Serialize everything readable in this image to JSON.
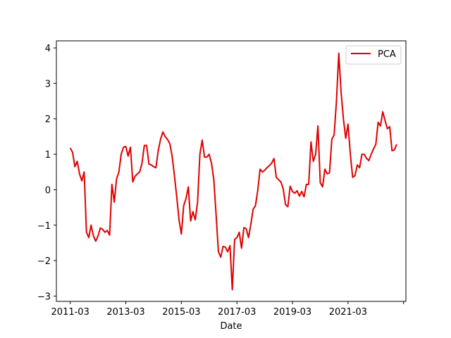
{
  "chart_data": {
    "type": "line",
    "title": "",
    "xlabel": "Date",
    "ylabel": "",
    "ylim": [
      -3.15,
      4.2
    ],
    "xlim": [
      "2010-09",
      "2023-04"
    ],
    "yticks": [
      "−3",
      "−2",
      "−1",
      "0",
      "1",
      "2",
      "3",
      "4"
    ],
    "ytick_values": [
      -3,
      -2,
      -1,
      0,
      1,
      2,
      3,
      4
    ],
    "xticks": [
      {
        "date": "2011-03",
        "label": "2011-03"
      },
      {
        "date": "2013-03",
        "label": "2013-03"
      },
      {
        "date": "2015-03",
        "label": "2015-03"
      },
      {
        "date": "2017-03",
        "label": "2017-03"
      },
      {
        "date": "2019-03",
        "label": "2019-03"
      },
      {
        "date": "2021-03",
        "label": "2021-03"
      },
      {
        "date": "2023-03",
        "label": ""
      }
    ],
    "grid": false,
    "legend_position": "top-right",
    "series": [
      {
        "name": "PCA",
        "color": "#e00000",
        "points": [
          [
            "2011-03",
            1.18
          ],
          [
            "2011-04",
            1.05
          ],
          [
            "2011-05",
            0.65
          ],
          [
            "2011-06",
            0.8
          ],
          [
            "2011-07",
            0.45
          ],
          [
            "2011-08",
            0.25
          ],
          [
            "2011-09",
            0.5
          ],
          [
            "2011-10",
            -1.2
          ],
          [
            "2011-11",
            -1.35
          ],
          [
            "2011-12",
            -1.0
          ],
          [
            "2012-01",
            -1.3
          ],
          [
            "2012-02",
            -1.45
          ],
          [
            "2012-03",
            -1.3
          ],
          [
            "2012-04",
            -1.08
          ],
          [
            "2012-05",
            -1.12
          ],
          [
            "2012-06",
            -1.2
          ],
          [
            "2012-07",
            -1.15
          ],
          [
            "2012-08",
            -1.28
          ],
          [
            "2012-09",
            0.15
          ],
          [
            "2012-10",
            -0.35
          ],
          [
            "2012-11",
            0.3
          ],
          [
            "2012-12",
            0.5
          ],
          [
            "2013-01",
            1.0
          ],
          [
            "2013-02",
            1.2
          ],
          [
            "2013-03",
            1.22
          ],
          [
            "2013-04",
            0.95
          ],
          [
            "2013-05",
            1.2
          ],
          [
            "2013-06",
            0.22
          ],
          [
            "2013-07",
            0.38
          ],
          [
            "2013-08",
            0.45
          ],
          [
            "2013-09",
            0.5
          ],
          [
            "2013-10",
            0.75
          ],
          [
            "2013-11",
            1.25
          ],
          [
            "2013-12",
            1.25
          ],
          [
            "2014-01",
            0.72
          ],
          [
            "2014-02",
            0.7
          ],
          [
            "2014-03",
            0.65
          ],
          [
            "2014-04",
            0.62
          ],
          [
            "2014-05",
            1.1
          ],
          [
            "2014-06",
            1.42
          ],
          [
            "2014-07",
            1.63
          ],
          [
            "2014-08",
            1.5
          ],
          [
            "2014-09",
            1.42
          ],
          [
            "2014-10",
            1.3
          ],
          [
            "2014-11",
            0.95
          ],
          [
            "2014-12",
            0.4
          ],
          [
            "2015-01",
            -0.2
          ],
          [
            "2015-02",
            -0.85
          ],
          [
            "2015-03",
            -1.25
          ],
          [
            "2015-04",
            -0.45
          ],
          [
            "2015-05",
            -0.25
          ],
          [
            "2015-06",
            0.08
          ],
          [
            "2015-07",
            -0.88
          ],
          [
            "2015-08",
            -0.62
          ],
          [
            "2015-09",
            -0.85
          ],
          [
            "2015-10",
            -0.35
          ],
          [
            "2015-11",
            1.0
          ],
          [
            "2015-12",
            1.4
          ],
          [
            "2016-01",
            0.92
          ],
          [
            "2016-02",
            0.92
          ],
          [
            "2016-03",
            1.0
          ],
          [
            "2016-04",
            0.75
          ],
          [
            "2016-05",
            0.3
          ],
          [
            "2016-06",
            -0.7
          ],
          [
            "2016-07",
            -1.75
          ],
          [
            "2016-08",
            -1.9
          ],
          [
            "2016-09",
            -1.6
          ],
          [
            "2016-10",
            -1.62
          ],
          [
            "2016-11",
            -1.75
          ],
          [
            "2016-12",
            -1.58
          ],
          [
            "2017-01",
            -2.82
          ],
          [
            "2017-02",
            -1.4
          ],
          [
            "2017-03",
            -1.35
          ],
          [
            "2017-04",
            -1.2
          ],
          [
            "2017-05",
            -1.65
          ],
          [
            "2017-06",
            -1.07
          ],
          [
            "2017-07",
            -1.1
          ],
          [
            "2017-08",
            -1.35
          ],
          [
            "2017-09",
            -0.98
          ],
          [
            "2017-10",
            -0.55
          ],
          [
            "2017-11",
            -0.45
          ],
          [
            "2017-12",
            -0.02
          ],
          [
            "2018-01",
            0.58
          ],
          [
            "2018-02",
            0.5
          ],
          [
            "2018-03",
            0.55
          ],
          [
            "2018-04",
            0.62
          ],
          [
            "2018-05",
            0.68
          ],
          [
            "2018-06",
            0.75
          ],
          [
            "2018-07",
            0.88
          ],
          [
            "2018-08",
            0.35
          ],
          [
            "2018-09",
            0.28
          ],
          [
            "2018-10",
            0.22
          ],
          [
            "2018-11",
            0.02
          ],
          [
            "2018-12",
            -0.42
          ],
          [
            "2019-01",
            -0.48
          ],
          [
            "2019-02",
            0.1
          ],
          [
            "2019-03",
            -0.05
          ],
          [
            "2019-04",
            -0.1
          ],
          [
            "2019-05",
            -0.03
          ],
          [
            "2019-06",
            -0.18
          ],
          [
            "2019-07",
            -0.05
          ],
          [
            "2019-08",
            -0.2
          ],
          [
            "2019-09",
            0.15
          ],
          [
            "2019-10",
            0.15
          ],
          [
            "2019-11",
            1.35
          ],
          [
            "2019-12",
            0.8
          ],
          [
            "2020-01",
            1.0
          ],
          [
            "2020-02",
            1.8
          ],
          [
            "2020-03",
            0.2
          ],
          [
            "2020-04",
            0.08
          ],
          [
            "2020-05",
            0.58
          ],
          [
            "2020-06",
            0.45
          ],
          [
            "2020-07",
            0.48
          ],
          [
            "2020-08",
            1.42
          ],
          [
            "2020-09",
            1.55
          ],
          [
            "2020-10",
            2.5
          ],
          [
            "2020-11",
            3.85
          ],
          [
            "2020-12",
            2.75
          ],
          [
            "2021-01",
            2.0
          ],
          [
            "2021-02",
            1.45
          ],
          [
            "2021-03",
            1.85
          ],
          [
            "2021-04",
            1.0
          ],
          [
            "2021-05",
            0.35
          ],
          [
            "2021-06",
            0.4
          ],
          [
            "2021-07",
            0.7
          ],
          [
            "2021-08",
            0.62
          ],
          [
            "2021-09",
            1.0
          ],
          [
            "2021-10",
            1.0
          ],
          [
            "2021-11",
            0.88
          ],
          [
            "2021-12",
            0.82
          ],
          [
            "2022-01",
            1.0
          ],
          [
            "2022-02",
            1.15
          ],
          [
            "2022-03",
            1.28
          ],
          [
            "2022-04",
            1.9
          ],
          [
            "2022-05",
            1.8
          ],
          [
            "2022-06",
            2.2
          ],
          [
            "2022-07",
            1.95
          ],
          [
            "2022-08",
            1.72
          ],
          [
            "2022-09",
            1.78
          ],
          [
            "2022-10",
            1.1
          ],
          [
            "2022-11",
            1.12
          ],
          [
            "2022-12",
            1.28
          ]
        ]
      }
    ]
  }
}
